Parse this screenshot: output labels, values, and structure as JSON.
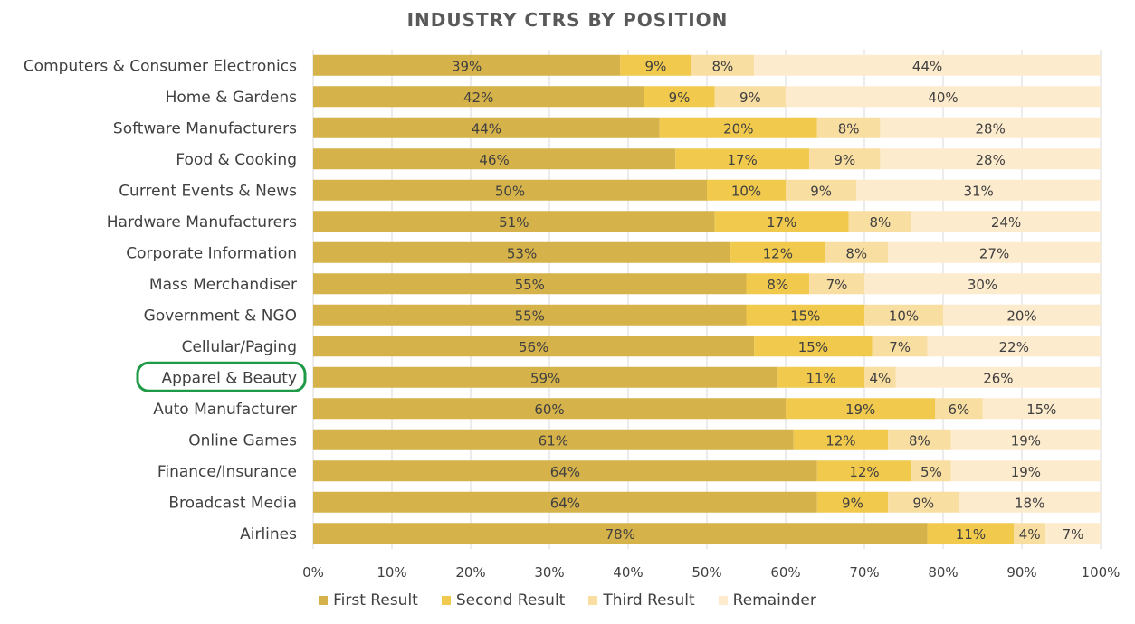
{
  "chart_data": {
    "type": "bar",
    "orientation": "horizontal",
    "stacked": "percent",
    "title": "INDUSTRY CTRS BY POSITION",
    "categories": [
      "Computers & Consumer Electronics",
      "Home & Gardens",
      "Software Manufacturers",
      "Food & Cooking",
      "Current Events & News",
      "Hardware Manufacturers",
      "Corporate Information",
      "Mass Merchandiser",
      "Government & NGO",
      "Cellular/Paging",
      "Apparel & Beauty",
      "Auto Manufacturer",
      "Online Games",
      "Finance/Insurance",
      "Broadcast Media",
      "Airlines"
    ],
    "series": [
      {
        "name": "First Result",
        "color": "#D6B24A",
        "values": [
          39,
          42,
          44,
          46,
          50,
          51,
          53,
          55,
          55,
          56,
          59,
          60,
          61,
          64,
          64,
          78
        ]
      },
      {
        "name": "Second Result",
        "color": "#F1C94C",
        "values": [
          9,
          9,
          20,
          17,
          10,
          17,
          12,
          8,
          15,
          15,
          11,
          19,
          12,
          12,
          9,
          11
        ]
      },
      {
        "name": "Third Result",
        "color": "#F9DEA2",
        "values": [
          8,
          9,
          8,
          9,
          9,
          8,
          8,
          7,
          10,
          7,
          4,
          6,
          8,
          5,
          9,
          4
        ]
      },
      {
        "name": "Remainder",
        "color": "#FDEBCD",
        "values": [
          44,
          40,
          28,
          28,
          31,
          24,
          27,
          30,
          20,
          22,
          26,
          15,
          19,
          19,
          18,
          7
        ]
      }
    ],
    "labels": [
      [
        "39%",
        "9%",
        "8%",
        "44%"
      ],
      [
        "42%",
        "9%",
        "9%",
        "40%"
      ],
      [
        "44%",
        "20%",
        "8%",
        "28%"
      ],
      [
        "46%",
        "17%",
        "9%",
        "28%"
      ],
      [
        "50%",
        "10%",
        "9%",
        "31%"
      ],
      [
        "51%",
        "17%",
        "8%",
        "24%"
      ],
      [
        "53%",
        "12%",
        "8%",
        "27%"
      ],
      [
        "55%",
        "8%",
        "7%",
        "30%"
      ],
      [
        "55%",
        "15%",
        "10%",
        "20%"
      ],
      [
        "56%",
        "15%",
        "7%",
        "22%"
      ],
      [
        "59%",
        "11%",
        "4%",
        "26%"
      ],
      [
        "60%",
        "19%",
        "6%",
        "15%"
      ],
      [
        "61%",
        "12%",
        "8%",
        "19%"
      ],
      [
        "64%",
        "12%",
        "5%",
        "19%"
      ],
      [
        "64%",
        "9%",
        "9%",
        "18%"
      ],
      [
        "78%",
        "11%",
        "4%",
        "7%"
      ]
    ],
    "xlim": [
      0,
      100
    ],
    "x_ticks": [
      "0%",
      "10%",
      "20%",
      "30%",
      "40%",
      "50%",
      "60%",
      "70%",
      "80%",
      "90%",
      "100%"
    ],
    "grid": true,
    "legend": "bottom",
    "highlighted_category": "Apparel & Beauty",
    "highlight_color": "#1E9A46"
  }
}
